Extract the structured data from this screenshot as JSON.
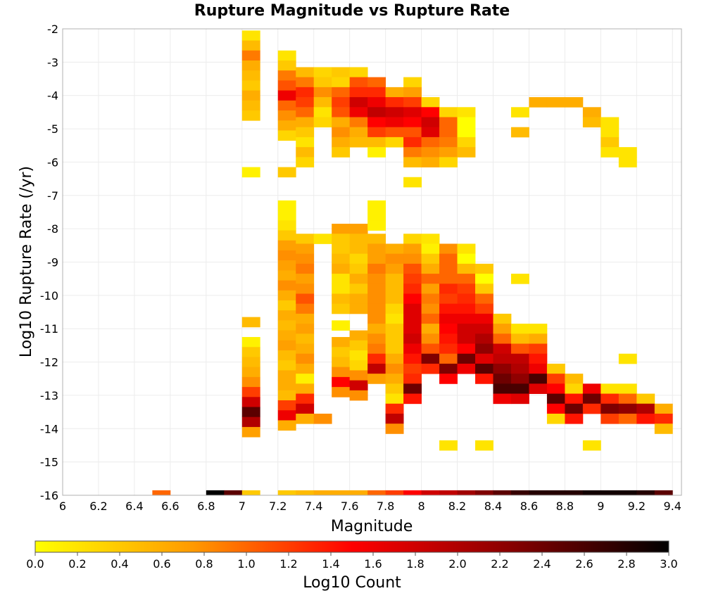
{
  "chart_data": {
    "type": "heatmap",
    "title": "Rupture Magnitude vs Rupture Rate",
    "xlabel": "Magnitude",
    "ylabel": "Log10 Rupture Rate (/yr)",
    "xlim": [
      6.0,
      9.45
    ],
    "ylim": [
      -16,
      -2
    ],
    "x_ticks": [
      "6",
      "6.2",
      "6.4",
      "6.6",
      "6.8",
      "7",
      "7.2",
      "7.4",
      "7.6",
      "7.8",
      "8",
      "8.2",
      "8.4",
      "8.6",
      "8.8",
      "9",
      "9.2",
      "9.4"
    ],
    "y_ticks": [
      "-2",
      "-3",
      "-4",
      "-5",
      "-6",
      "-7",
      "-8",
      "-9",
      "-10",
      "-11",
      "-12",
      "-13",
      "-14",
      "-15",
      "-16"
    ],
    "grid": true,
    "bin_width_mag": 0.1,
    "bin_height_log_rate": 0.3,
    "colorbar": {
      "label": "Log10 Count",
      "min": 0.0,
      "max": 3.0,
      "ticks": [
        "0.0",
        "0.2",
        "0.4",
        "0.6",
        "0.8",
        "1.0",
        "1.2",
        "1.4",
        "1.6",
        "1.8",
        "2.0",
        "2.2",
        "2.4",
        "2.6",
        "2.8",
        "3.0"
      ],
      "colors": [
        "#ffff00",
        "#ff9900",
        "#ff0000",
        "#880000",
        "#000000"
      ],
      "placement": "bottom"
    },
    "columns": [
      {
        "mag": 6.55,
        "segments": [
          {
            "y": -16.0,
            "v": [
              1.0
            ]
          }
        ]
      },
      {
        "mag": 6.85,
        "segments": [
          {
            "y": -16.0,
            "v": [
              3.0
            ]
          }
        ]
      },
      {
        "mag": 6.95,
        "segments": [
          {
            "y": -16.0,
            "v": [
              2.5
            ]
          }
        ]
      },
      {
        "mag": 7.05,
        "segments": [
          {
            "y": -2.2,
            "v": [
              0.2,
              0.5,
              0.9,
              0.6,
              0.5,
              0.4,
              0.6,
              0.5,
              0.4
            ]
          },
          {
            "y": -6.3,
            "v": [
              0.1
            ]
          },
          {
            "y": -10.8,
            "v": [
              0.5
            ]
          },
          {
            "y": -11.4,
            "v": [
              0.1,
              0.4,
              0.5,
              0.6,
              0.8,
              1.2,
              1.8,
              2.5,
              2.0,
              0.7
            ]
          },
          {
            "y": -16.0,
            "v": [
              0.4
            ]
          }
        ]
      },
      {
        "mag": 7.25,
        "segments": [
          {
            "y": -2.8,
            "v": [
              0.2,
              0.4,
              0.9,
              1.1,
              1.6,
              1.0,
              0.8,
              0.6,
              0.3
            ]
          },
          {
            "y": -6.3,
            "v": [
              0.4
            ]
          },
          {
            "y": -7.3,
            "v": [
              0.1,
              0.1,
              0.2,
              0.4,
              0.7,
              0.8,
              0.7,
              0.6,
              0.8,
              0.6,
              0.4,
              0.6,
              0.5,
              0.6,
              0.7,
              0.5,
              0.4,
              0.6,
              0.6,
              0.5,
              1.2,
              1.6,
              0.6
            ]
          },
          {
            "y": -16.0,
            "v": [
              0.4
            ]
          }
        ]
      },
      {
        "mag": 7.35,
        "segments": [
          {
            "y": -3.3,
            "v": [
              0.5,
              0.9,
              1.3,
              1.2,
              1.0,
              0.6,
              0.4,
              0.2,
              0.5,
              0.3
            ]
          },
          {
            "y": -8.3,
            "v": [
              0.4,
              0.7,
              0.8,
              0.9,
              0.7,
              0.8,
              1.1,
              0.9,
              0.6,
              0.7,
              0.5,
              0.6,
              0.8,
              0.6,
              0.1,
              0.6,
              1.3,
              1.8,
              0.6
            ]
          },
          {
            "y": -16.0,
            "v": [
              0.5
            ]
          }
        ]
      },
      {
        "mag": 7.45,
        "segments": [
          {
            "y": -3.3,
            "v": [
              0.3,
              0.4,
              0.8,
              0.5,
              0.2,
              0.3
            ]
          },
          {
            "y": -8.3,
            "v": [
              0.2
            ]
          },
          {
            "y": -13.7,
            "v": [
              0.8
            ]
          },
          {
            "y": -16.0,
            "v": [
              0.6
            ]
          }
        ]
      },
      {
        "mag": 7.55,
        "segments": [
          {
            "y": -3.3,
            "v": [
              0.4,
              0.3,
              1.0,
              1.2,
              1.1,
              0.6,
              0.8,
              0.6,
              0.4
            ]
          },
          {
            "y": -8.0,
            "v": [
              0.7,
              0.4,
              0.4,
              0.5,
              0.6,
              0.2,
              0.2,
              0.5,
              0.4
            ]
          },
          {
            "y": -10.9,
            "v": [
              0.1
            ]
          },
          {
            "y": -11.4,
            "v": [
              0.6,
              0.4,
              0.5,
              0.8,
              1.5,
              0.8
            ]
          },
          {
            "y": -16.0,
            "v": [
              0.6
            ]
          }
        ]
      },
      {
        "mag": 7.65,
        "segments": [
          {
            "y": -3.3,
            "v": [
              0.3,
              1.1,
              1.3,
              1.8,
              1.6,
              0.9,
              0.6,
              0.5
            ]
          },
          {
            "y": -8.0,
            "v": [
              0.7,
              0.5,
              0.5,
              0.3,
              0.4,
              0.6,
              0.4,
              0.6,
              0.6
            ]
          },
          {
            "y": -11.2,
            "v": [
              0.6,
              0.4,
              0.2,
              0.3,
              0.8,
              1.8,
              0.8
            ]
          },
          {
            "y": -16.0,
            "v": [
              0.6
            ]
          }
        ]
      },
      {
        "mag": 7.75,
        "segments": [
          {
            "y": -3.6,
            "v": [
              1.0,
              1.3,
              1.6,
              1.9,
              1.5,
              1.2,
              0.5,
              0.1
            ]
          },
          {
            "y": -7.3,
            "v": [
              0.1,
              0.1
            ]
          },
          {
            "y": -7.9,
            "v": [
              0.1
            ]
          },
          {
            "y": -8.3,
            "v": [
              0.5,
              0.7,
              0.7,
              0.9,
              0.8,
              0.8,
              0.8,
              0.8,
              0.8,
              0.6,
              0.8,
              0.9,
              1.3,
              1.9,
              0.7
            ]
          },
          {
            "y": -16.0,
            "v": [
              1.0
            ]
          }
        ]
      },
      {
        "mag": 7.85,
        "segments": [
          {
            "y": -3.9,
            "v": [
              0.6,
              1.3,
              1.8,
              1.6,
              1.1,
              0.3
            ]
          },
          {
            "y": -8.6,
            "v": [
              0.6,
              0.8,
              0.7,
              0.5,
              0.5,
              0.5,
              0.3,
              0.2,
              0.4,
              0.4,
              0.4,
              0.6,
              0.8,
              0.6,
              0.4,
              0.2,
              1.3,
              1.9,
              0.8
            ]
          },
          {
            "y": -16.0,
            "v": [
              1.2
            ]
          }
        ]
      },
      {
        "mag": 7.95,
        "segments": [
          {
            "y": -3.6,
            "v": [
              0.3,
              0.7,
              1.2,
              1.7,
              1.5,
              1.1,
              1.3,
              0.9,
              0.5
            ]
          },
          {
            "y": -6.6,
            "v": [
              0.2
            ]
          },
          {
            "y": -8.3,
            "v": [
              0.3,
              0.7,
              0.8,
              1.1,
              1.2,
              1.3,
              1.5,
              1.7,
              1.7,
              1.7,
              1.8,
              1.6,
              1.4,
              1.2,
              1.3,
              2.4,
              1.4
            ]
          },
          {
            "y": -16.0,
            "v": [
              1.5
            ]
          }
        ]
      },
      {
        "mag": 8.05,
        "segments": [
          {
            "y": -3.3,
            "v": []
          },
          {
            "y": -4.2,
            "v": [
              0.3,
              1.5,
              1.8,
              1.7,
              1.0,
              0.8,
              0.6
            ]
          },
          {
            "y": -8.3,
            "v": [
              0.2,
              0.1,
              0.4,
              0.6,
              1.0,
              0.7,
              0.9,
              0.8,
              1.0,
              0.6,
              0.8,
              1.1,
              2.3,
              1.3
            ]
          },
          {
            "y": -16.0,
            "v": [
              1.8
            ]
          }
        ]
      },
      {
        "mag": 8.15,
        "segments": [
          {
            "y": -4.5,
            "v": [
              0.3,
              1.0,
              1.0,
              0.9,
              0.7,
              0.3
            ]
          },
          {
            "y": -8.6,
            "v": [
              0.8,
              1.0,
              1.0,
              1.0,
              1.3,
              1.2,
              1.4,
              1.6,
              1.5,
              1.4,
              1.3,
              1.0,
              2.3,
              1.5
            ]
          },
          {
            "y": -14.5,
            "v": [
              0.2
            ]
          },
          {
            "y": -16.0,
            "v": [
              1.9
            ]
          }
        ]
      },
      {
        "mag": 8.25,
        "segments": [
          {
            "y": -4.5,
            "v": [
              0.2,
              0.0,
              0.0,
              0.3,
              0.5
            ]
          },
          {
            "y": -8.6,
            "v": [
              0.2,
              0.0,
              0.5,
              1.0,
              1.2,
              1.3,
              1.4,
              1.6,
              1.8,
              1.8,
              1.5,
              2.4,
              1.6
            ]
          },
          {
            "y": -16.0,
            "v": [
              2.1
            ]
          }
        ]
      },
      {
        "mag": 8.35,
        "segments": [
          {
            "y": -9.2,
            "v": [
              0.4,
              0.0,
              0.4,
              1.0,
              1.2,
              1.6,
              1.8,
              2.0,
              2.2,
              1.7,
              2.5,
              1.4
            ]
          },
          {
            "y": -14.5,
            "v": [
              0.2
            ]
          },
          {
            "y": -16.0,
            "v": [
              2.3
            ]
          }
        ]
      },
      {
        "mag": 8.45,
        "segments": [
          {
            "y": -10.7,
            "v": [
              0.4,
              0.7,
              1.0,
              1.8,
              1.9,
              2.2,
              2.4,
              2.6,
              1.6
            ]
          },
          {
            "y": -16.0,
            "v": [
              2.5
            ]
          }
        ]
      },
      {
        "mag": 8.55,
        "segments": [
          {
            "y": -4.5,
            "v": [
              0.2
            ]
          },
          {
            "y": -5.1,
            "v": [
              0.5
            ]
          },
          {
            "y": -9.5,
            "v": [
              0.2
            ]
          },
          {
            "y": -11.0,
            "v": [
              0.2,
              0.5,
              1.1,
              1.9,
              2.0,
              2.2,
              2.6,
              1.7
            ]
          },
          {
            "y": -16.0,
            "v": [
              2.7
            ]
          }
        ]
      },
      {
        "mag": 8.65,
        "segments": [
          {
            "y": -4.2,
            "v": [
              0.6
            ]
          },
          {
            "y": -11.0,
            "v": [
              0.2,
              0.6,
              1.2,
              1.4,
              1.6,
              2.6,
              1.7
            ]
          },
          {
            "y": -16.0,
            "v": [
              2.8
            ]
          }
        ]
      },
      {
        "mag": 8.75,
        "segments": [
          {
            "y": -4.2,
            "v": [
              0.6
            ]
          },
          {
            "y": -12.2,
            "v": [
              0.4,
              1.2,
              1.5,
              2.5,
              1.5,
              0.3
            ]
          },
          {
            "y": -16.0,
            "v": [
              2.8
            ]
          }
        ]
      },
      {
        "mag": 8.85,
        "segments": [
          {
            "y": -4.2,
            "v": [
              0.6
            ]
          },
          {
            "y": -12.5,
            "v": [
              0.5,
              0.3,
              1.4,
              2.4,
              1.4
            ]
          },
          {
            "y": -16.0,
            "v": [
              2.8
            ]
          }
        ]
      },
      {
        "mag": 8.95,
        "segments": [
          {
            "y": -4.5,
            "v": [
              0.6,
              0.5
            ]
          },
          {
            "y": -12.8,
            "v": [
              1.6,
              2.4,
              1.3
            ]
          },
          {
            "y": -14.5,
            "v": [
              0.2
            ]
          },
          {
            "y": -16.0,
            "v": [
              2.9
            ]
          }
        ]
      },
      {
        "mag": 9.05,
        "segments": [
          {
            "y": -4.8,
            "v": [
              0.2,
              0.2,
              0.4,
              0.2
            ]
          },
          {
            "y": -12.8,
            "v": [
              0.2,
              1.3,
              2.3,
              1.2
            ]
          },
          {
            "y": -16.0,
            "v": [
              2.9
            ]
          }
        ]
      },
      {
        "mag": 9.15,
        "segments": [
          {
            "y": -5.7,
            "v": [
              0.2,
              0.2
            ]
          },
          {
            "y": -11.9,
            "v": [
              0.2
            ]
          },
          {
            "y": -12.8,
            "v": [
              0.2,
              1.0,
              2.2,
              1.0
            ]
          },
          {
            "y": -16.0,
            "v": [
              2.9
            ]
          }
        ]
      },
      {
        "mag": 9.25,
        "segments": [
          {
            "y": -13.1,
            "v": [
              0.4,
              2.0,
              1.4
            ]
          },
          {
            "y": -16.0,
            "v": [
              2.8
            ]
          }
        ]
      },
      {
        "mag": 9.35,
        "segments": [
          {
            "y": -13.4,
            "v": [
              0.6,
              1.3,
              0.5
            ]
          },
          {
            "y": -16.0,
            "v": [
              2.5
            ]
          }
        ]
      }
    ]
  }
}
